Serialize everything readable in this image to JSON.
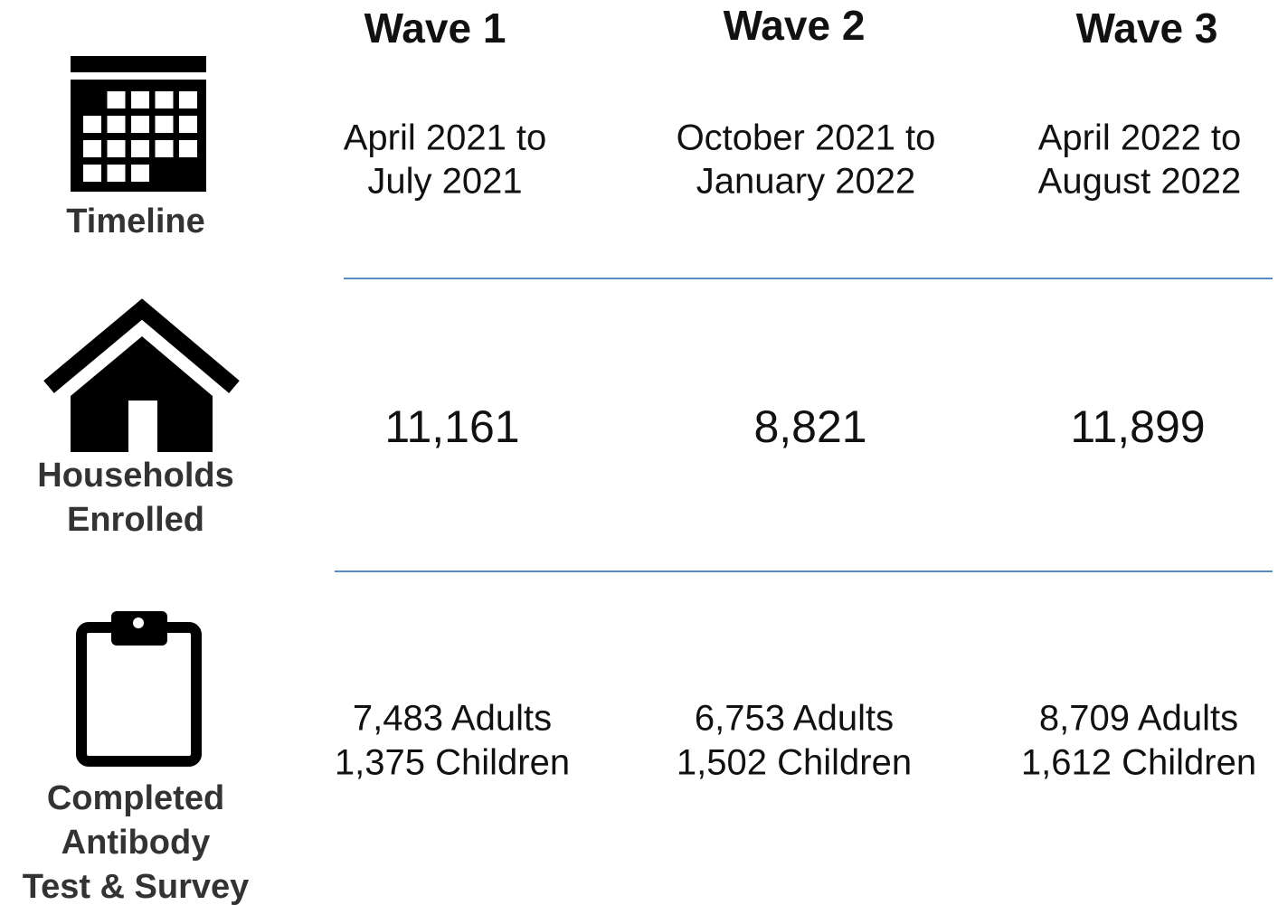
{
  "columns": [
    "Wave 1",
    "Wave 2",
    "Wave 3"
  ],
  "rows": [
    {
      "label": [
        "Timeline"
      ],
      "cells": [
        [
          "April 2021 to",
          "July 2021"
        ],
        [
          "October 2021 to",
          "January 2022"
        ],
        [
          "April 2022 to",
          "August 2022"
        ]
      ]
    },
    {
      "label": [
        "Households",
        "Enrolled"
      ],
      "cells": [
        [
          "11,161"
        ],
        [
          "8,821"
        ],
        [
          "11,899"
        ]
      ]
    },
    {
      "label": [
        "Completed",
        "Antibody",
        "Test & Survey"
      ],
      "cells": [
        [
          "7,483 Adults",
          "1,375 Children"
        ],
        [
          "6,753 Adults",
          "1,502 Children"
        ],
        [
          "8,709 Adults",
          "1,612 Children"
        ]
      ]
    }
  ]
}
